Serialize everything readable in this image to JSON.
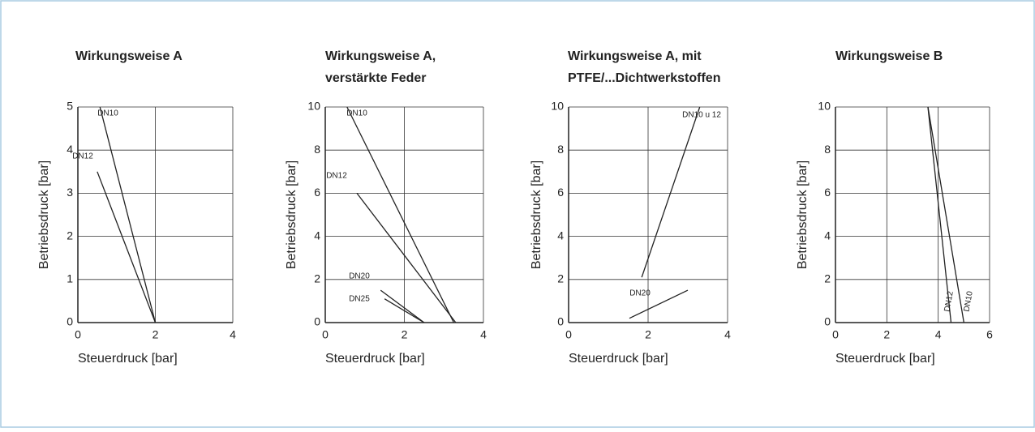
{
  "chart_data": [
    {
      "type": "line",
      "title": [
        "Wirkungsweise A"
      ],
      "x_label": "Steuerdruck [bar]",
      "y_label": "Betriebsdruck [bar]",
      "xlim": [
        0,
        4
      ],
      "ylim": [
        0,
        5
      ],
      "xticks": [
        0,
        2,
        4
      ],
      "yticks": [
        0,
        1,
        2,
        3,
        4,
        5
      ],
      "grid": true,
      "color": "#222222",
      "series": [
        {
          "name": "DN10",
          "x": [
            0.57,
            2
          ],
          "values": [
            5,
            0
          ]
        },
        {
          "name": "DN12",
          "x": [
            0.5,
            2
          ],
          "values": [
            3.5,
            0
          ]
        }
      ]
    },
    {
      "type": "line",
      "title": [
        "Wirkungsweise A,",
        "verstärkte Feder"
      ],
      "x_label": "Steuerdruck [bar]",
      "y_label": "Betriebsdruck [bar]",
      "xlim": [
        0,
        4
      ],
      "ylim": [
        0,
        10
      ],
      "xticks": [
        0,
        2,
        4
      ],
      "yticks": [
        0,
        2,
        4,
        6,
        8,
        10
      ],
      "grid": true,
      "color": "#222222",
      "series": [
        {
          "name": "DN10",
          "x": [
            0.55,
            3.25
          ],
          "values": [
            10,
            0
          ]
        },
        {
          "name": "DN12",
          "x": [
            0.8,
            3.3
          ],
          "values": [
            6,
            0
          ]
        },
        {
          "name": "DN20",
          "x": [
            1.4,
            2.5
          ],
          "values": [
            1.5,
            0
          ]
        },
        {
          "name": "DN25",
          "x": [
            1.5,
            2.5
          ],
          "values": [
            1.1,
            0
          ]
        }
      ]
    },
    {
      "type": "line",
      "title": [
        "Wirkungsweise A, mit",
        "PTFE/...Dichtwerkstoffen"
      ],
      "x_label": "Steuerdruck [bar]",
      "y_label": "Betriebsdruck [bar]",
      "xlim": [
        0,
        4
      ],
      "ylim": [
        0,
        10
      ],
      "xticks": [
        0,
        2,
        4
      ],
      "yticks": [
        0,
        2,
        4,
        6,
        8,
        10
      ],
      "grid": true,
      "color": "#222222",
      "series": [
        {
          "name": "DN10 u 12",
          "x": [
            1.84,
            3.3
          ],
          "values": [
            2.1,
            10
          ]
        },
        {
          "name": "DN20",
          "x": [
            1.53,
            3.0
          ],
          "values": [
            0.2,
            1.5
          ]
        }
      ]
    },
    {
      "type": "line",
      "title": [
        "Wirkungsweise B"
      ],
      "x_label": "Steuerdruck [bar]",
      "y_label": "Betriebsdruck [bar]",
      "xlim": [
        0,
        6
      ],
      "ylim": [
        0,
        10
      ],
      "xticks": [
        0,
        2,
        4,
        6
      ],
      "yticks": [
        0,
        2,
        4,
        6,
        8,
        10
      ],
      "grid": true,
      "color": "#222222",
      "series": [
        {
          "name": "DN12",
          "x": [
            3.6,
            4.5
          ],
          "values": [
            10,
            0
          ]
        },
        {
          "name": "DN10",
          "x": [
            3.6,
            5.0
          ],
          "values": [
            10,
            0
          ]
        }
      ]
    }
  ]
}
